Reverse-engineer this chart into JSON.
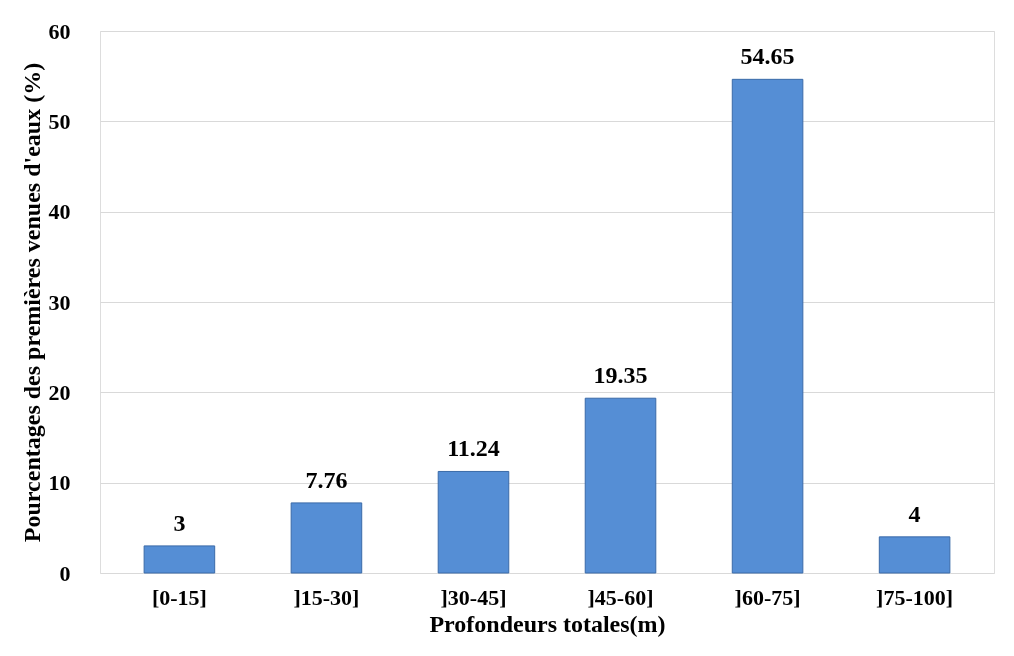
{
  "chart_data": {
    "type": "bar",
    "xlabel": "Profondeurs totales(m)",
    "ylabel": "Pourcentages des premières venues d'eaux (%)",
    "categories": [
      "[0-15]",
      "]15-30]",
      "]30-45]",
      "]45-60]",
      "]60-75]",
      "]75-100]"
    ],
    "values": [
      3,
      7.76,
      11.24,
      19.35,
      54.65,
      4
    ],
    "color": "#558ed5",
    "ylim": [
      0,
      60
    ],
    "yticks": [
      0,
      10,
      20,
      30,
      40,
      50,
      60
    ],
    "grid": "y",
    "data_labels": true
  }
}
